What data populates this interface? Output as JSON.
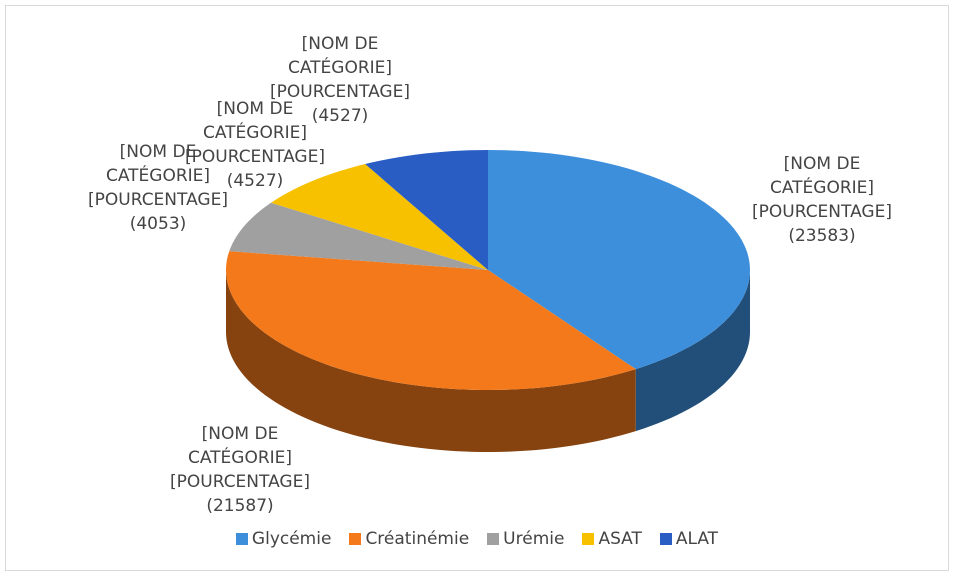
{
  "chart_data": {
    "type": "pie3d",
    "categories": [
      "Glycémie",
      "Créatinémie",
      "Urémie",
      "ASAT",
      "ALAT"
    ],
    "values": [
      23583,
      21587,
      4053,
      4527,
      4527
    ],
    "value_labels": [
      "(23583)",
      "(21587)",
      "(4053)",
      "(4527)",
      "(4527)"
    ],
    "label_placeholders": {
      "name": "[NOM DE CATÉGORIE]",
      "percent": "[POURCENTAGE]"
    },
    "colors": [
      "#3d8fdc",
      "#f3791b",
      "#a0a0a0",
      "#f7c100",
      "#2a5dc4"
    ],
    "legend": "bottom"
  }
}
